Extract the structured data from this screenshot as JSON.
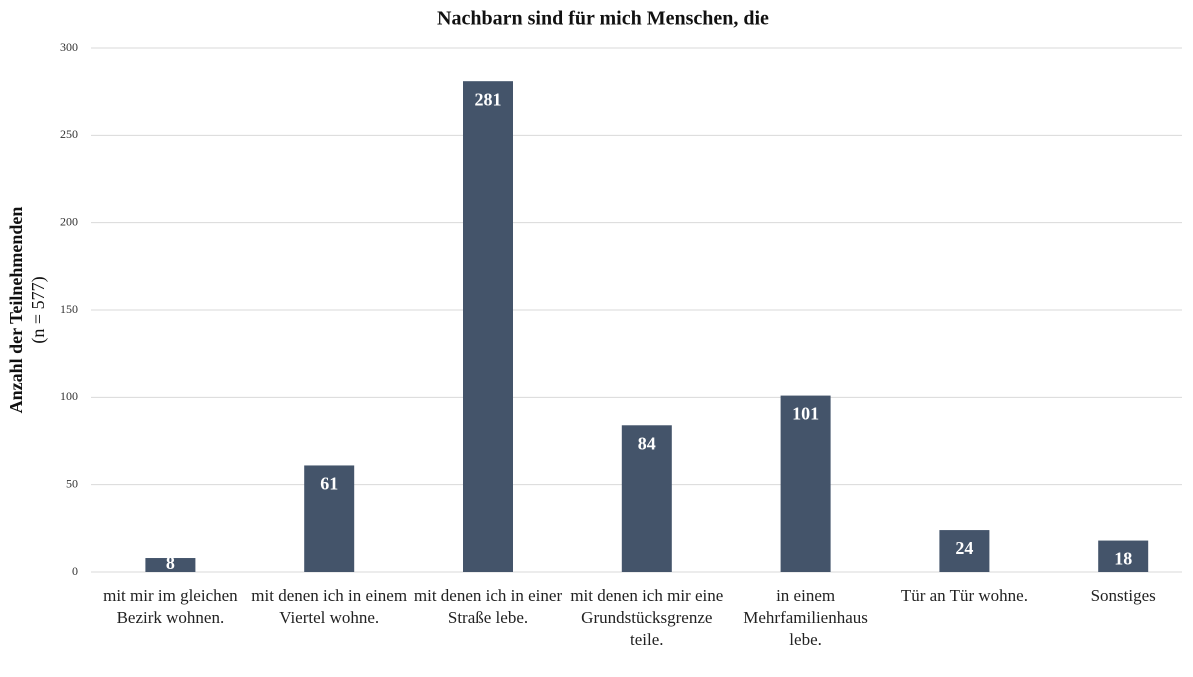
{
  "chart_data": {
    "type": "bar",
    "title": "Nachbarn sind für mich Menschen, die",
    "y_label": "Anzahl der Teilnehmenden",
    "y_sublabel": "(n = 577)",
    "categories": [
      "mit mir im gleichen Bezirk wohnen.",
      "mit denen ich in einem Viertel wohne.",
      "mit denen ich in einer Straße lebe.",
      "mit denen ich mir eine Grundstücksgrenze teile.",
      "in einem Mehrfamilienhaus lebe.",
      "Tür an Tür wohne.",
      "Sonstiges"
    ],
    "values": [
      8,
      61,
      281,
      84,
      101,
      24,
      18
    ],
    "color": "#44546a",
    "ylim": [
      0,
      300
    ],
    "yticks": [
      0,
      50,
      100,
      150,
      200,
      250,
      300
    ],
    "grid": true
  }
}
